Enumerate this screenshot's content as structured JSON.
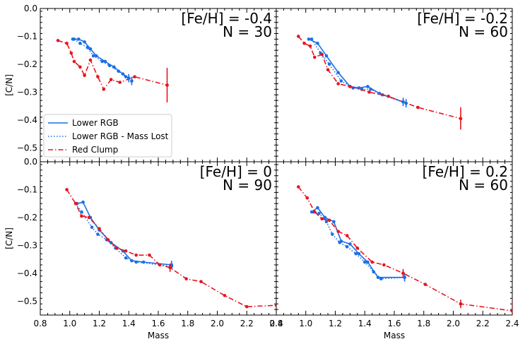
{
  "chart_data": {
    "type": "line",
    "shared_xlabel": "Mass",
    "shared_ylabel": "[C/N]",
    "xlim": [
      0.8,
      2.4
    ],
    "ylim": [
      -0.55,
      0.0
    ],
    "x_ticks": [
      "0.8",
      "1.0",
      "1.2",
      "1.4",
      "1.6",
      "1.8",
      "2.0",
      "2.2",
      "2.4"
    ],
    "y_ticks": [
      "0.0",
      "−0.1",
      "−0.2",
      "−0.3",
      "−0.4",
      "−0.5"
    ],
    "legend": {
      "location": "lower-left of top-left panel",
      "entries": [
        {
          "label": "Lower RGB",
          "color": "#1a6fe6",
          "style": "solid"
        },
        {
          "label": "Lower RGB - Mass Lost",
          "color": "#1a6fe6",
          "style": "dotted"
        },
        {
          "label": "Red Clump",
          "color": "#e8141e",
          "style": "dashdot"
        }
      ]
    },
    "panels": [
      {
        "line1": "[Fe/H] = -0.4",
        "line2": "N = 30",
        "series": [
          {
            "key": "lower_rgb",
            "x": [
              1.02,
              1.06,
              1.1,
              1.14,
              1.18,
              1.24,
              1.3,
              1.36,
              1.4
            ],
            "y": [
              -0.11,
              -0.11,
              -0.12,
              -0.145,
              -0.17,
              -0.19,
              -0.21,
              -0.235,
              -0.25
            ]
          },
          {
            "key": "mass_lost",
            "x": [
              1.03,
              1.07,
              1.12,
              1.16,
              1.22,
              1.27,
              1.33,
              1.38,
              1.42
            ],
            "y": [
              -0.11,
              -0.125,
              -0.14,
              -0.17,
              -0.19,
              -0.205,
              -0.225,
              -0.245,
              -0.26
            ]
          },
          {
            "key": "red_clump",
            "x": [
              0.92,
              0.98,
              1.01,
              1.03,
              1.07,
              1.1,
              1.14,
              1.19,
              1.23,
              1.28,
              1.34,
              1.44,
              1.66
            ],
            "y": [
              -0.115,
              -0.125,
              -0.16,
              -0.19,
              -0.21,
              -0.24,
              -0.185,
              -0.245,
              -0.29,
              -0.255,
              -0.265,
              -0.245,
              -0.275
            ]
          }
        ],
        "errorbars": [
          {
            "x": 1.4,
            "y": -0.25,
            "err": 0.015,
            "color": "#1a6fe6"
          },
          {
            "x": 1.42,
            "y": -0.26,
            "err": 0.015,
            "color": "#1a6fe6"
          },
          {
            "x": 1.66,
            "y": -0.275,
            "err": 0.062,
            "color": "#e8141e"
          }
        ]
      },
      {
        "line1": "[Fe/H] = -0.2",
        "line2": "N = 60",
        "series": [
          {
            "key": "lower_rgb",
            "x": [
              1.02,
              1.08,
              1.14,
              1.22,
              1.3,
              1.36,
              1.42,
              1.5,
              1.66
            ],
            "y": [
              -0.11,
              -0.125,
              -0.17,
              -0.23,
              -0.28,
              -0.285,
              -0.28,
              -0.305,
              -0.335
            ]
          },
          {
            "key": "mass_lost",
            "x": [
              1.04,
              1.1,
              1.16,
              1.24,
              1.32,
              1.38,
              1.44,
              1.52,
              1.68
            ],
            "y": [
              -0.11,
              -0.16,
              -0.2,
              -0.26,
              -0.285,
              -0.29,
              -0.29,
              -0.31,
              -0.34
            ]
          },
          {
            "key": "red_clump",
            "x": [
              0.95,
              0.99,
              1.03,
              1.06,
              1.11,
              1.15,
              1.22,
              1.3,
              1.43,
              1.56,
              1.76,
              2.05
            ],
            "y": [
              -0.1,
              -0.125,
              -0.135,
              -0.175,
              -0.165,
              -0.22,
              -0.27,
              -0.28,
              -0.3,
              -0.315,
              -0.355,
              -0.395
            ]
          }
        ],
        "errorbars": [
          {
            "x": 1.66,
            "y": -0.335,
            "err": 0.015,
            "color": "#1a6fe6"
          },
          {
            "x": 1.68,
            "y": -0.34,
            "err": 0.015,
            "color": "#1a6fe6"
          },
          {
            "x": 2.05,
            "y": -0.395,
            "err": 0.04,
            "color": "#e8141e"
          }
        ]
      },
      {
        "line1": "[Fe/H] = 0",
        "line2": "N = 90",
        "series": [
          {
            "key": "lower_rgb",
            "x": [
              1.05,
              1.09,
              1.14,
              1.2,
              1.28,
              1.36,
              1.42,
              1.5,
              1.69
            ],
            "y": [
              -0.15,
              -0.145,
              -0.2,
              -0.245,
              -0.29,
              -0.32,
              -0.355,
              -0.36,
              -0.37
            ]
          },
          {
            "key": "mass_lost",
            "x": [
              1.04,
              1.08,
              1.15,
              1.19,
              1.25,
              1.31,
              1.38,
              1.45,
              1.69
            ],
            "y": [
              -0.15,
              -0.18,
              -0.235,
              -0.26,
              -0.28,
              -0.31,
              -0.345,
              -0.36,
              -0.375
            ]
          },
          {
            "key": "red_clump",
            "x": [
              0.98,
              1.04,
              1.08,
              1.13,
              1.2,
              1.26,
              1.32,
              1.38,
              1.45,
              1.54,
              1.61,
              1.68,
              1.79,
              1.89,
              2.05,
              2.2,
              2.4
            ],
            "y": [
              -0.1,
              -0.15,
              -0.195,
              -0.2,
              -0.24,
              -0.28,
              -0.31,
              -0.32,
              -0.335,
              -0.335,
              -0.37,
              -0.38,
              -0.42,
              -0.43,
              -0.48,
              -0.52,
              -0.515
            ]
          }
        ],
        "errorbars": [
          {
            "x": 1.69,
            "y": -0.37,
            "err": 0.015,
            "color": "#1a6fe6"
          },
          {
            "x": 1.68,
            "y": -0.38,
            "err": 0.015,
            "color": "#e8141e"
          }
        ]
      },
      {
        "line1": "[Fe/H] = 0.2",
        "line2": "N = 60",
        "series": [
          {
            "key": "lower_rgb",
            "x": [
              1.04,
              1.08,
              1.13,
              1.19,
              1.24,
              1.3,
              1.36,
              1.42,
              1.49,
              1.67
            ],
            "y": [
              -0.18,
              -0.165,
              -0.2,
              -0.215,
              -0.285,
              -0.295,
              -0.33,
              -0.36,
              -0.415,
              -0.415
            ]
          },
          {
            "key": "mass_lost",
            "x": [
              1.05,
              1.09,
              1.14,
              1.18,
              1.23,
              1.28,
              1.34,
              1.4,
              1.46,
              1.51,
              1.67
            ],
            "y": [
              -0.18,
              -0.185,
              -0.215,
              -0.26,
              -0.29,
              -0.305,
              -0.33,
              -0.36,
              -0.395,
              -0.42,
              -0.415
            ]
          },
          {
            "key": "red_clump",
            "x": [
              0.95,
              1.01,
              1.06,
              1.11,
              1.16,
              1.22,
              1.28,
              1.35,
              1.45,
              1.53,
              1.66,
              1.81,
              2.05,
              2.4
            ],
            "y": [
              -0.09,
              -0.13,
              -0.18,
              -0.205,
              -0.21,
              -0.25,
              -0.265,
              -0.31,
              -0.36,
              -0.37,
              -0.4,
              -0.44,
              -0.51,
              -0.535
            ]
          }
        ],
        "errorbars": [
          {
            "x": 1.67,
            "y": -0.415,
            "err": 0.015,
            "color": "#1a6fe6"
          },
          {
            "x": 1.66,
            "y": -0.4,
            "err": 0.015,
            "color": "#e8141e"
          },
          {
            "x": 2.05,
            "y": -0.51,
            "err": 0.015,
            "color": "#e8141e"
          },
          {
            "x": 2.4,
            "y": -0.535,
            "err": 0.035,
            "color": "#e8141e"
          }
        ]
      }
    ]
  }
}
